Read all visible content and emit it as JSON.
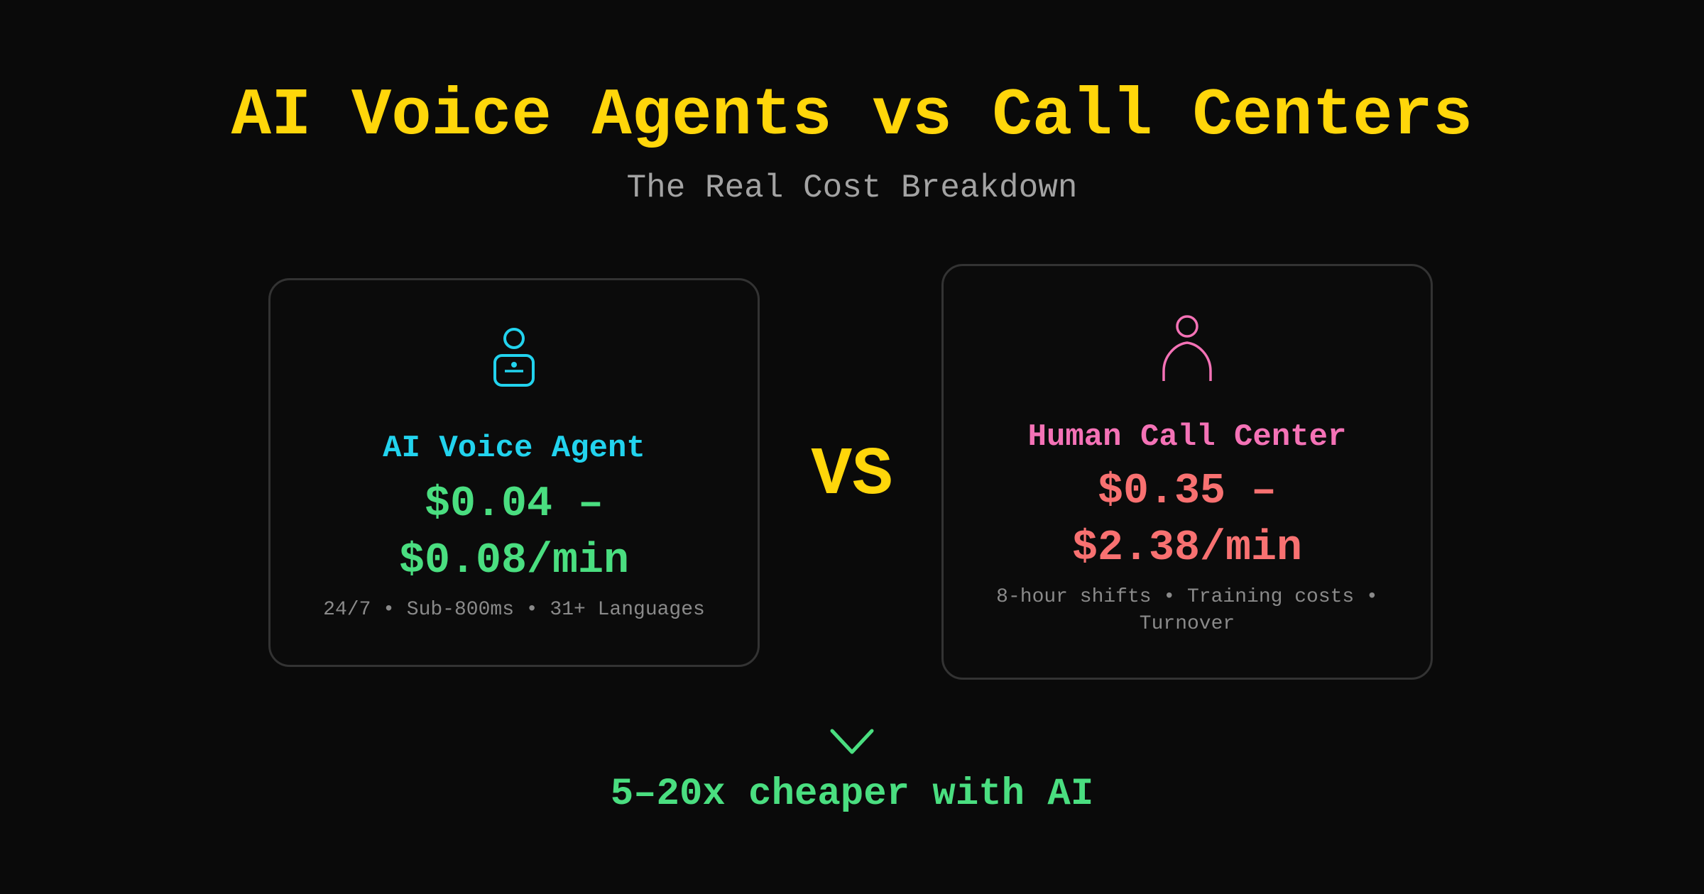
{
  "header": {
    "title": "AI Voice Agents vs Call Centers",
    "subtitle": "The Real Cost Breakdown"
  },
  "cards": [
    {
      "icon": "robot-agent-icon",
      "title": "AI Voice Agent",
      "price_line1": "$0.04 –",
      "price_line2": "$0.08/min",
      "features": "24/7 • Sub-800ms • 31+ Languages",
      "title_color": "#22d3ee",
      "price_color": "#4ade80"
    },
    {
      "icon": "person-icon",
      "title": "Human Call Center",
      "price_line1": "$0.35 –",
      "price_line2": "$2.38/min",
      "features": "8-hour shifts • Training costs • Turnover",
      "title_color": "#f472b6",
      "price_color": "#f87171"
    }
  ],
  "vs_label": "VS",
  "footer": {
    "icon": "chevron-down-icon",
    "tagline": "5–20x cheaper with AI"
  },
  "colors": {
    "background": "#0a0a0a",
    "accent_yellow": "#FFD60A",
    "green": "#4ade80"
  }
}
